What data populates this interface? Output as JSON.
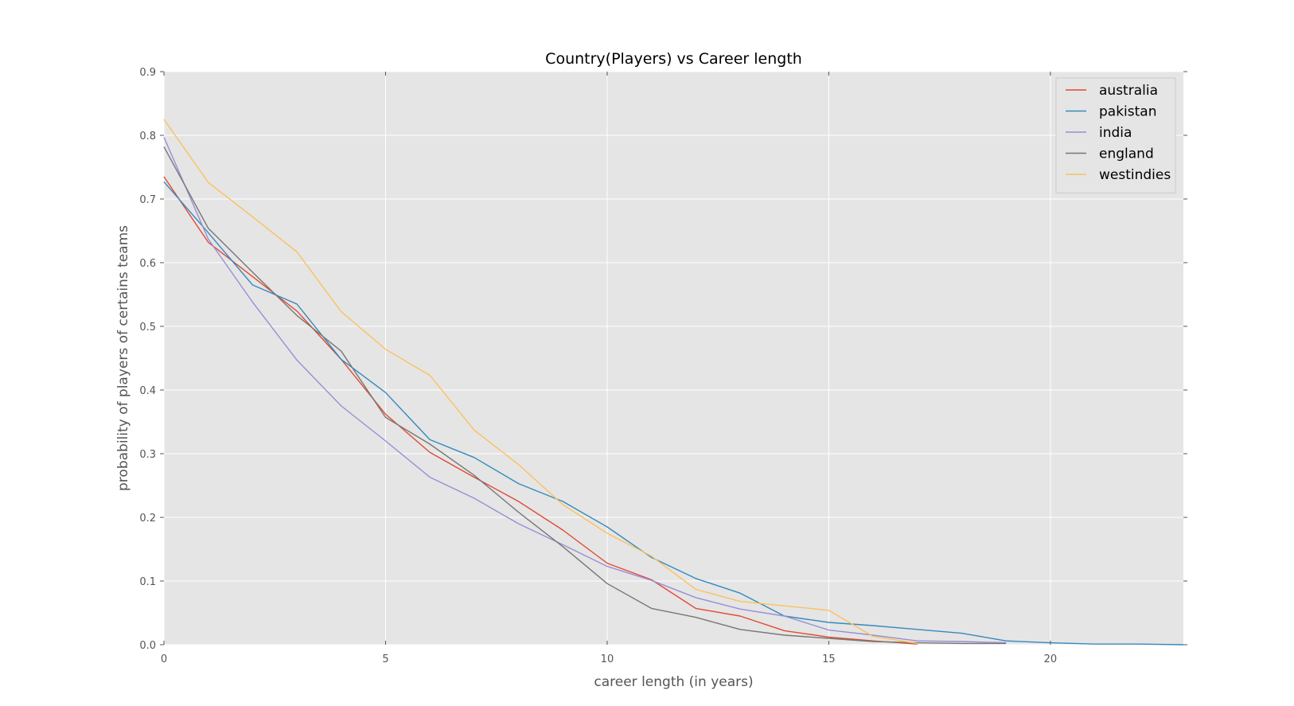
{
  "chart_data": {
    "type": "line",
    "title": "Country(Players) vs Career length",
    "xlabel": "career length (in years)",
    "ylabel": "probability of players of certains teams",
    "xlim": [
      0,
      23
    ],
    "ylim": [
      0,
      0.9
    ],
    "xticks": [
      0,
      5,
      10,
      15,
      20
    ],
    "xtick_labels": [
      "0",
      "5",
      "10",
      "15",
      "20"
    ],
    "yticks": [
      0.0,
      0.1,
      0.2,
      0.3,
      0.4,
      0.5,
      0.6,
      0.7,
      0.8,
      0.9
    ],
    "ytick_labels": [
      "0.0",
      "0.1",
      "0.2",
      "0.3",
      "0.4",
      "0.5",
      "0.6",
      "0.7",
      "0.8",
      "0.9"
    ],
    "grid": true,
    "legend_position": "top-right",
    "background_color": "#e5e5e5",
    "series": [
      {
        "name": "australia",
        "color": "#e24a33",
        "x": [
          0,
          1,
          2,
          3,
          4,
          5,
          6,
          7,
          8,
          9,
          10,
          11,
          12,
          13,
          14,
          15,
          16,
          17
        ],
        "y": [
          0.735,
          0.632,
          0.578,
          0.524,
          0.448,
          0.362,
          0.302,
          0.263,
          0.225,
          0.18,
          0.128,
          0.102,
          0.057,
          0.045,
          0.022,
          0.012,
          0.006,
          0.001
        ]
      },
      {
        "name": "pakistan",
        "color": "#348abd",
        "x": [
          0,
          1,
          2,
          3,
          4,
          5,
          6,
          7,
          8,
          9,
          10,
          11,
          12,
          13,
          14,
          15,
          16,
          17,
          18,
          19,
          20,
          21,
          22,
          23
        ],
        "y": [
          0.727,
          0.647,
          0.565,
          0.535,
          0.448,
          0.396,
          0.322,
          0.294,
          0.253,
          0.225,
          0.185,
          0.137,
          0.104,
          0.081,
          0.045,
          0.035,
          0.03,
          0.024,
          0.018,
          0.006,
          0.003,
          0.001,
          0.001,
          0.0
        ]
      },
      {
        "name": "india",
        "color": "#988ed5",
        "x": [
          0,
          1,
          2,
          3,
          4,
          5,
          6,
          7,
          8,
          9,
          10,
          11,
          12,
          13,
          14,
          15,
          16,
          17,
          18,
          19
        ],
        "y": [
          0.797,
          0.637,
          0.538,
          0.447,
          0.375,
          0.32,
          0.263,
          0.23,
          0.19,
          0.157,
          0.123,
          0.101,
          0.074,
          0.056,
          0.045,
          0.023,
          0.015,
          0.006,
          0.005,
          0.003
        ]
      },
      {
        "name": "england",
        "color": "#777777",
        "x": [
          0,
          1,
          2,
          3,
          4,
          5,
          6,
          7,
          8,
          9,
          10,
          11,
          12,
          13,
          14,
          15,
          16,
          17,
          18,
          19
        ],
        "y": [
          0.782,
          0.654,
          0.585,
          0.517,
          0.461,
          0.357,
          0.315,
          0.266,
          0.208,
          0.154,
          0.096,
          0.057,
          0.043,
          0.024,
          0.015,
          0.01,
          0.005,
          0.003,
          0.002,
          0.002
        ]
      },
      {
        "name": "westindies",
        "color": "#fbc15e",
        "x": [
          0,
          1,
          2,
          3,
          4,
          5,
          6,
          7,
          8,
          9,
          10,
          11,
          12,
          13,
          14,
          15,
          16,
          17
        ],
        "y": [
          0.825,
          0.726,
          0.672,
          0.617,
          0.523,
          0.464,
          0.423,
          0.337,
          0.283,
          0.22,
          0.175,
          0.139,
          0.087,
          0.068,
          0.061,
          0.054,
          0.013,
          0.002
        ]
      }
    ]
  }
}
